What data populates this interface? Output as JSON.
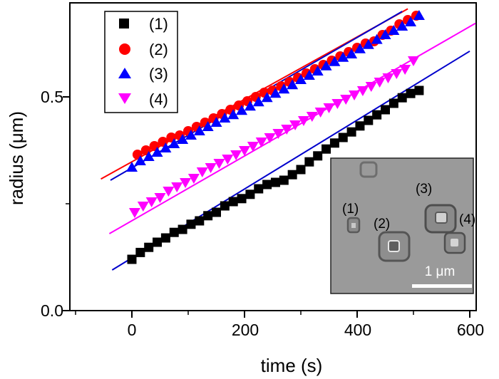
{
  "chart_data": {
    "type": "scatter",
    "xlabel": "time (s)",
    "ylabel": "radius (μm)",
    "xlim": [
      -110,
      650
    ],
    "ylim": [
      0.0,
      0.74
    ],
    "xticks": [
      "0",
      "200",
      "400",
      "600"
    ],
    "yticks": [
      "0.0",
      "0.5"
    ],
    "legend_position": "top-left",
    "series": [
      {
        "name": "(1)",
        "marker": "square",
        "color": "#000000",
        "x": [
          0,
          15,
          30,
          45,
          60,
          75,
          90,
          105,
          120,
          135,
          150,
          165,
          180,
          195,
          210,
          225,
          240,
          255,
          270,
          285,
          300,
          315,
          330,
          345,
          360,
          375,
          390,
          405,
          420,
          435,
          450,
          465,
          480,
          495,
          510
        ],
        "y": [
          0.12,
          0.136,
          0.148,
          0.16,
          0.17,
          0.183,
          0.19,
          0.202,
          0.21,
          0.222,
          0.23,
          0.245,
          0.255,
          0.262,
          0.272,
          0.285,
          0.295,
          0.3,
          0.305,
          0.318,
          0.33,
          0.348,
          0.362,
          0.378,
          0.392,
          0.405,
          0.418,
          0.432,
          0.445,
          0.458,
          0.47,
          0.485,
          0.498,
          0.508,
          0.515
        ]
      },
      {
        "name": "(2)",
        "marker": "circle",
        "color": "#ff0000",
        "x": [
          10,
          25,
          40,
          55,
          70,
          85,
          100,
          115,
          130,
          145,
          160,
          175,
          190,
          205,
          220,
          235,
          250,
          265,
          280,
          295,
          310,
          325,
          340,
          355,
          370,
          385,
          400,
          415,
          430,
          445,
          460,
          475,
          490,
          505
        ],
        "y": [
          0.365,
          0.375,
          0.385,
          0.395,
          0.405,
          0.41,
          0.42,
          0.43,
          0.44,
          0.45,
          0.46,
          0.47,
          0.48,
          0.49,
          0.5,
          0.51,
          0.515,
          0.525,
          0.535,
          0.545,
          0.555,
          0.565,
          0.575,
          0.585,
          0.595,
          0.605,
          0.615,
          0.625,
          0.63,
          0.645,
          0.655,
          0.67,
          0.68,
          0.69
        ]
      },
      {
        "name": "(3)",
        "marker": "triangle-up",
        "color": "#0000ff",
        "x": [
          0,
          15,
          30,
          45,
          60,
          75,
          90,
          105,
          120,
          135,
          150,
          165,
          180,
          195,
          210,
          225,
          240,
          255,
          270,
          285,
          300,
          315,
          330,
          345,
          360,
          375,
          390,
          405,
          420,
          435,
          450,
          465,
          480,
          495,
          510
        ],
        "y": [
          0.335,
          0.35,
          0.36,
          0.37,
          0.38,
          0.39,
          0.4,
          0.41,
          0.42,
          0.43,
          0.44,
          0.45,
          0.458,
          0.468,
          0.478,
          0.488,
          0.498,
          0.508,
          0.518,
          0.528,
          0.54,
          0.55,
          0.56,
          0.572,
          0.582,
          0.592,
          0.6,
          0.612,
          0.622,
          0.634,
          0.645,
          0.655,
          0.665,
          0.675,
          0.69
        ]
      },
      {
        "name": "(4)",
        "marker": "triangle-down",
        "color": "#ff00ff",
        "x": [
          5,
          20,
          35,
          50,
          65,
          80,
          95,
          110,
          125,
          140,
          155,
          170,
          185,
          200,
          215,
          230,
          245,
          260,
          275,
          290,
          305,
          320,
          335,
          350,
          365,
          380,
          395,
          410,
          425,
          440,
          455,
          470,
          485,
          500
        ],
        "y": [
          0.23,
          0.245,
          0.255,
          0.265,
          0.28,
          0.29,
          0.3,
          0.31,
          0.325,
          0.335,
          0.345,
          0.355,
          0.365,
          0.375,
          0.385,
          0.395,
          0.405,
          0.415,
          0.425,
          0.435,
          0.445,
          0.455,
          0.465,
          0.475,
          0.485,
          0.495,
          0.505,
          0.515,
          0.525,
          0.535,
          0.545,
          0.555,
          0.565,
          0.585
        ]
      }
    ],
    "fits": [
      {
        "series": "(1)",
        "color": "#0000cc",
        "x": [
          -35,
          600
        ],
        "y": [
          0.095,
          0.607
        ]
      },
      {
        "series": "(2)",
        "color": "#ff0000",
        "x": [
          -55,
          490
        ],
        "y": [
          0.308,
          0.706
        ]
      },
      {
        "series": "(3)",
        "color": "#0000cc",
        "x": [
          -38,
          480
        ],
        "y": [
          0.305,
          0.7
        ]
      },
      {
        "series": "(4)",
        "color": "#ff00ff",
        "x": [
          -40,
          610
        ],
        "y": [
          0.18,
          0.672
        ]
      }
    ]
  },
  "inset": {
    "labels": [
      "(1)",
      "(2)",
      "(3)",
      "(4)"
    ],
    "scale_bar": "1 μm"
  },
  "colors": {
    "inset_background": "#9a9a9a",
    "scale_bar": "#ffffff"
  }
}
